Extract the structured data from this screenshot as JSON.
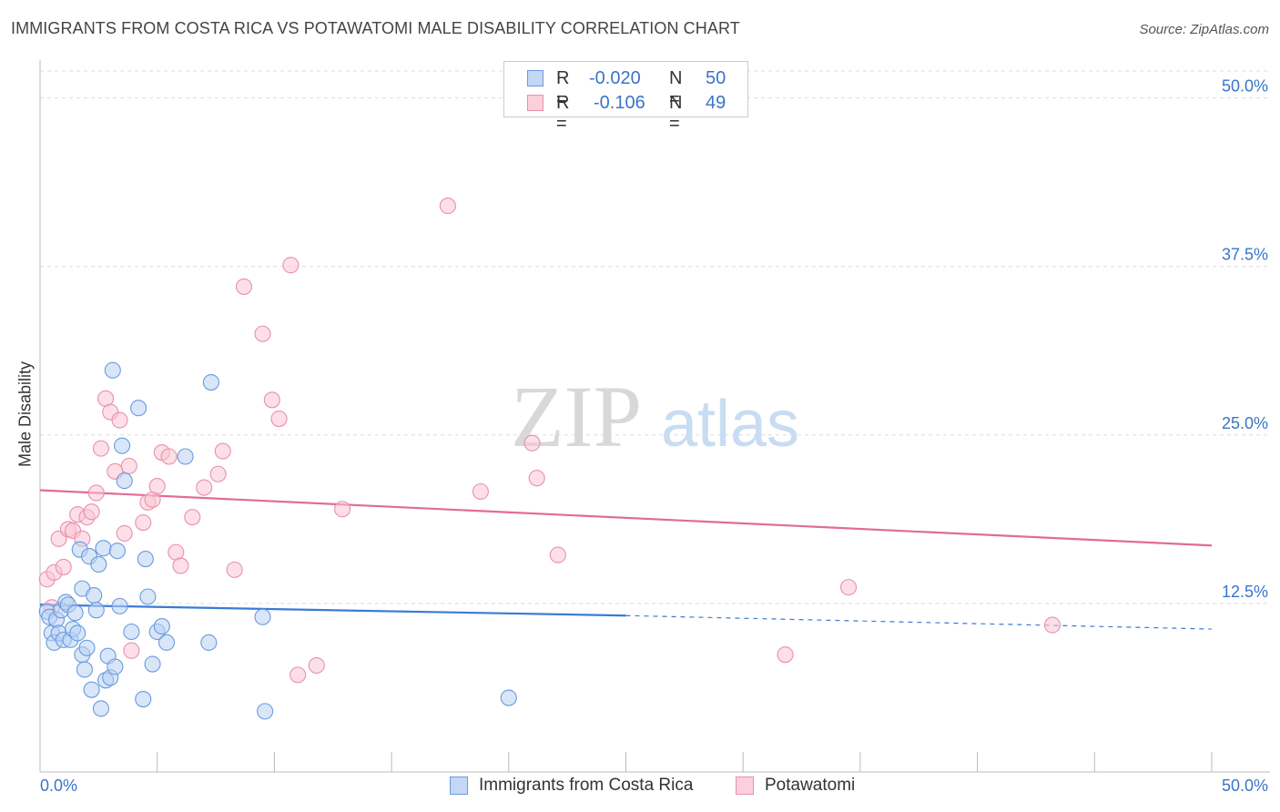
{
  "title": "IMMIGRANTS FROM COSTA RICA VS POTAWATOMI MALE DISABILITY CORRELATION CHART",
  "source": "Source: ZipAtlas.com",
  "watermark": {
    "zip": "ZIP",
    "atlas": "atlas"
  },
  "legend_top": {
    "rows": [
      {
        "r_label": "R =",
        "r_value": "-0.020",
        "n_label": "N =",
        "n_value": "50",
        "color": "#a8c8f0",
        "border": "#6a9ae0"
      },
      {
        "r_label": "R =",
        "r_value": "-0.106",
        "n_label": "N =",
        "n_value": "49",
        "color": "#f8c0d0",
        "border": "#e890ae"
      }
    ]
  },
  "legend_bottom": [
    {
      "label": "Immigrants from Costa Rica",
      "color": "#c2d8f5",
      "border": "#6a9ae0"
    },
    {
      "label": "Potawatomi",
      "color": "#fbd0dc",
      "border": "#e890ae"
    }
  ],
  "chart_data": {
    "type": "scatter",
    "title": "IMMIGRANTS FROM COSTA RICA VS POTAWATOMI MALE DISABILITY CORRELATION CHART",
    "xlabel": "",
    "ylabel": "Male Disability",
    "xlim": [
      0,
      50
    ],
    "ylim": [
      0,
      52
    ],
    "x_tick_labels": {
      "left": "0.0%",
      "right": "50.0%"
    },
    "y_ticks": [
      {
        "value": 12.5,
        "label": "12.5%"
      },
      {
        "value": 25.0,
        "label": "25.0%"
      },
      {
        "value": 37.5,
        "label": "37.5%"
      },
      {
        "value": 50.0,
        "label": "50.0%"
      }
    ],
    "series": [
      {
        "name": "Immigrants from Costa Rica",
        "color": "#6a9ae0",
        "fill": "#b8d2f2",
        "line_color": "#3a7bd5",
        "trend": {
          "x0": 0,
          "y0": 12.4,
          "x1": 25,
          "y1": 11.6,
          "dash_to_x": 50,
          "dash_to_y": 10.6
        },
        "points": [
          [
            0.3,
            11.9
          ],
          [
            0.4,
            11.5
          ],
          [
            0.5,
            10.3
          ],
          [
            0.6,
            9.6
          ],
          [
            0.7,
            11.3
          ],
          [
            0.8,
            10.3
          ],
          [
            0.9,
            12.0
          ],
          [
            1.0,
            9.8
          ],
          [
            1.1,
            12.6
          ],
          [
            1.2,
            12.4
          ],
          [
            1.3,
            9.8
          ],
          [
            1.4,
            10.6
          ],
          [
            1.5,
            11.8
          ],
          [
            1.6,
            10.3
          ],
          [
            1.7,
            16.5
          ],
          [
            1.8,
            8.7
          ],
          [
            1.8,
            13.6
          ],
          [
            1.9,
            7.6
          ],
          [
            2.0,
            9.2
          ],
          [
            2.1,
            16.0
          ],
          [
            2.2,
            6.1
          ],
          [
            2.3,
            13.1
          ],
          [
            2.4,
            12.0
          ],
          [
            2.5,
            15.4
          ],
          [
            2.6,
            4.7
          ],
          [
            2.7,
            16.6
          ],
          [
            2.8,
            6.8
          ],
          [
            2.9,
            8.6
          ],
          [
            3.0,
            7.0
          ],
          [
            3.1,
            29.8
          ],
          [
            3.2,
            7.8
          ],
          [
            3.3,
            16.4
          ],
          [
            3.4,
            12.3
          ],
          [
            3.5,
            24.2
          ],
          [
            3.6,
            21.6
          ],
          [
            3.9,
            10.4
          ],
          [
            4.2,
            27.0
          ],
          [
            4.4,
            5.4
          ],
          [
            4.5,
            15.8
          ],
          [
            4.6,
            13.0
          ],
          [
            4.8,
            8.0
          ],
          [
            5.0,
            10.4
          ],
          [
            5.2,
            10.8
          ],
          [
            5.4,
            9.6
          ],
          [
            6.2,
            23.4
          ],
          [
            7.2,
            9.6
          ],
          [
            7.3,
            28.9
          ],
          [
            9.5,
            11.5
          ],
          [
            9.6,
            4.5
          ],
          [
            20.0,
            5.5
          ]
        ]
      },
      {
        "name": "Potawatomi",
        "color": "#e890ae",
        "fill": "#f9c4d4",
        "line_color": "#e06c94",
        "trend": {
          "x0": 0,
          "y0": 20.9,
          "x1": 50,
          "y1": 16.8
        },
        "points": [
          [
            0.3,
            14.3
          ],
          [
            0.5,
            12.2
          ],
          [
            0.6,
            14.8
          ],
          [
            0.8,
            17.3
          ],
          [
            1.0,
            15.2
          ],
          [
            1.2,
            18.0
          ],
          [
            1.4,
            17.9
          ],
          [
            1.6,
            19.1
          ],
          [
            1.8,
            17.3
          ],
          [
            2.0,
            18.9
          ],
          [
            2.2,
            19.3
          ],
          [
            2.4,
            20.7
          ],
          [
            2.6,
            24.0
          ],
          [
            2.8,
            27.7
          ],
          [
            3.0,
            26.7
          ],
          [
            3.2,
            22.3
          ],
          [
            3.4,
            26.1
          ],
          [
            3.6,
            17.7
          ],
          [
            3.8,
            22.7
          ],
          [
            3.9,
            9.0
          ],
          [
            4.4,
            18.5
          ],
          [
            4.6,
            20.0
          ],
          [
            4.8,
            20.2
          ],
          [
            5.0,
            21.2
          ],
          [
            5.2,
            23.7
          ],
          [
            5.5,
            23.4
          ],
          [
            5.8,
            16.3
          ],
          [
            6.0,
            15.3
          ],
          [
            6.5,
            18.9
          ],
          [
            7.0,
            21.1
          ],
          [
            7.6,
            22.1
          ],
          [
            7.8,
            23.8
          ],
          [
            8.3,
            15.0
          ],
          [
            8.7,
            36.0
          ],
          [
            9.5,
            32.5
          ],
          [
            9.9,
            27.6
          ],
          [
            10.2,
            26.2
          ],
          [
            10.7,
            37.6
          ],
          [
            11.0,
            7.2
          ],
          [
            11.8,
            7.9
          ],
          [
            12.9,
            19.5
          ],
          [
            17.4,
            42.0
          ],
          [
            18.8,
            20.8
          ],
          [
            21.0,
            24.4
          ],
          [
            21.2,
            21.8
          ],
          [
            22.1,
            16.1
          ],
          [
            31.8,
            8.7
          ],
          [
            34.5,
            13.7
          ],
          [
            43.2,
            10.9
          ]
        ]
      }
    ]
  }
}
